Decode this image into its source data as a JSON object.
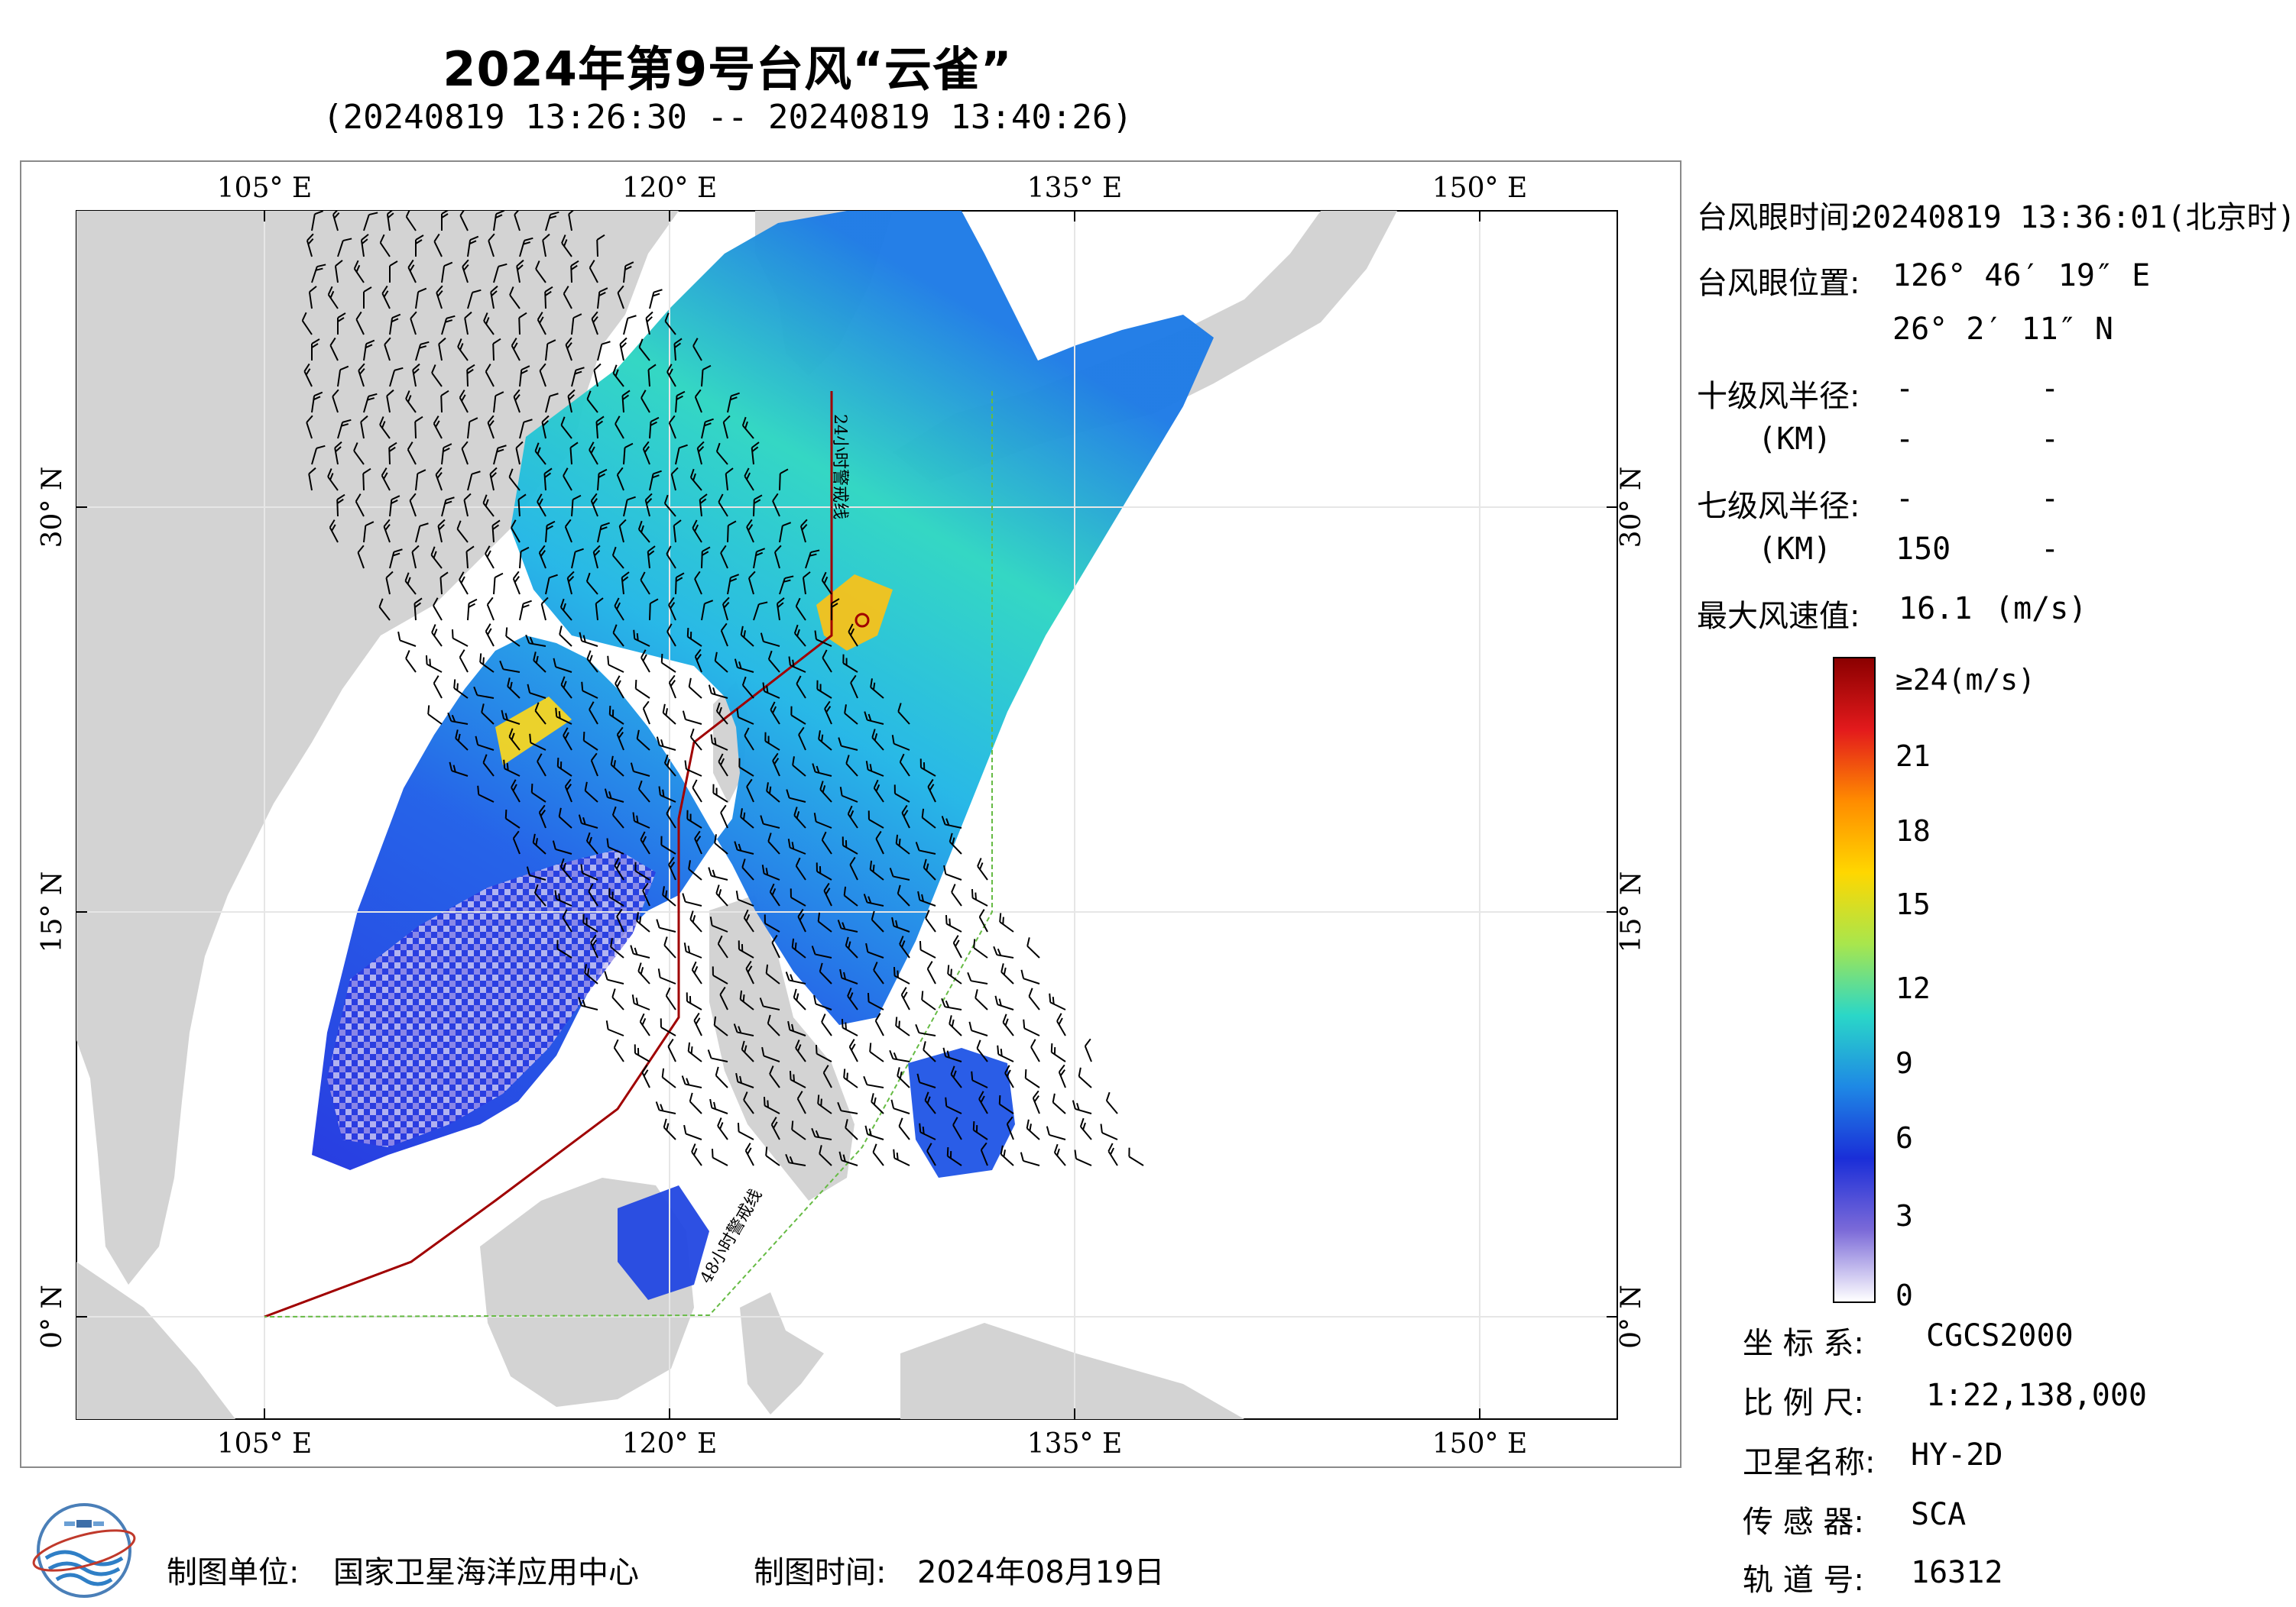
{
  "header": {
    "title": "2024年第9号台风“云雀”",
    "subtitle": "(20240819 13:26:30 -- 20240819 13:40:26)"
  },
  "map": {
    "lon_labels_top": [
      "105° E",
      "120° E",
      "135° E",
      "150° E"
    ],
    "lon_labels_bottom": [
      "105° E",
      "120° E",
      "135° E",
      "150° E"
    ],
    "lat_labels_left": [
      "30° N",
      "15° N",
      "0° N"
    ],
    "lat_labels_right": [
      "30° N",
      "15° N",
      "0° N"
    ],
    "track_label_upper": "24小时警戒线",
    "track_label_lower": "48小时警戒线",
    "colors": {
      "land": "#d3d3d3",
      "sea": "#ffffff",
      "warning_line_24h": "#a00000",
      "warning_line_48h": "#66bb44",
      "barb": "#000000"
    }
  },
  "info": {
    "eye_time_label": "台风眼时间:",
    "eye_time_value": "20240819 13:36:01(北京时)",
    "eye_pos_label": "台风眼位置:",
    "eye_lon": "126° 46′ 19″ E",
    "eye_lat": "26° 2′ 11″ N",
    "r10_label": "十级风半径:",
    "r10_unit": "(KM)",
    "r10_values": [
      "-",
      "-",
      "-",
      "-"
    ],
    "r7_label": "七级风半径:",
    "r7_unit": "(KM)",
    "r7_values": [
      "-",
      "-",
      "150",
      "-"
    ],
    "max_wind_label": "最大风速值:",
    "max_wind_value": "16.1",
    "max_wind_unit": "(m/s)"
  },
  "colorbar": {
    "unit_label": "≥24(m/s)",
    "ticks": [
      "21",
      "18",
      "15",
      "12",
      "9",
      "6",
      "3",
      "0"
    ],
    "stops": [
      "#8b0000",
      "#e31a1c",
      "#ff8c00",
      "#ffd700",
      "#a8e64d",
      "#2ad7c8",
      "#1e88e5",
      "#1a2ed8",
      "#7b6ad8",
      "#ffffff"
    ]
  },
  "meta": {
    "crs_label": "坐 标 系:",
    "crs_value": "CGCS2000",
    "scale_label": "比 例 尺:",
    "scale_value": "1:22,138,000",
    "satellite_label": "卫星名称:",
    "satellite_value": "HY-2D",
    "sensor_label": "传 感 器:",
    "sensor_value": "SCA",
    "orbit_label": "轨 道 号:",
    "orbit_value": "16312"
  },
  "footer": {
    "producer_label": "制图单位:",
    "producer_value": "国家卫星海洋应用中心",
    "date_label": "制图时间:",
    "date_value": "2024年08月19日"
  }
}
